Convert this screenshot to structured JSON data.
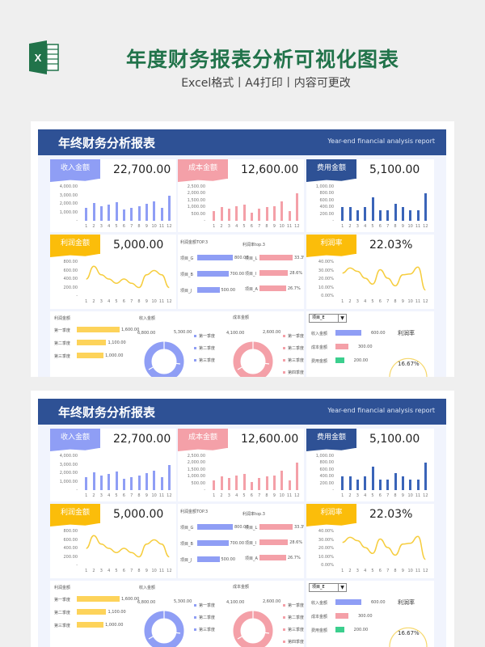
{
  "header": {
    "title": "年度财务报表分析可视化图表",
    "subtitle": "Excel格式丨A4打印丨内容可更改",
    "logo_icon": "excel-icon",
    "title_color": "#21734a"
  },
  "colors": {
    "banner": "#2e5195",
    "income": "#8f9ef5",
    "cost": "#f4a0a8",
    "expense": "#3a64b8",
    "profit": "#fbbd0a",
    "line": "#f6cd3e",
    "green": "#3ccf8e",
    "panel_bg": "#f1f4fd"
  },
  "report": {
    "title": "年终财务分析报表",
    "subtitle": "Year-end financial analysis report",
    "months": [
      "1",
      "2",
      "3",
      "4",
      "5",
      "6",
      "7",
      "8",
      "9",
      "10",
      "11",
      "12"
    ],
    "income": {
      "tag": "收入金额",
      "total": "22,700.00",
      "y_ticks": [
        "4,000.00",
        "3,000.00",
        "2,000.00",
        "1,000.00",
        "-"
      ],
      "values": [
        1500,
        2100,
        1700,
        1900,
        2200,
        1300,
        1500,
        1700,
        2000,
        2300,
        1500,
        3000
      ],
      "ymax": 4000
    },
    "cost": {
      "tag": "成本金额",
      "total": "12,600.00",
      "y_ticks": [
        "2,500.00",
        "2,000.00",
        "1,500.00",
        "1,000.00",
        "500.00",
        "-"
      ],
      "values": [
        700,
        1000,
        900,
        1100,
        1200,
        600,
        900,
        1000,
        1100,
        1400,
        700,
        2000
      ],
      "ymax": 2500
    },
    "expense": {
      "tag": "费用金额",
      "total": "5,100.00",
      "y_ticks": [
        "1,000.00",
        "800.00",
        "600.00",
        "400.00",
        "200.00",
        "-"
      ],
      "values": [
        400,
        400,
        300,
        400,
        700,
        300,
        300,
        500,
        400,
        300,
        300,
        800
      ],
      "ymax": 1000
    },
    "profit": {
      "tag": "利润金额",
      "total": "5,000.00",
      "y_ticks": [
        "800.00",
        "600.00",
        "400.00",
        "200.00",
        "-"
      ],
      "values": [
        400,
        700,
        500,
        400,
        300,
        400,
        300,
        200,
        500,
        600,
        500,
        200
      ],
      "ymax": 800
    },
    "profit_rate": {
      "tag": "利润率",
      "total": "22.03%",
      "y_ticks": [
        "40.00%",
        "30.00%",
        "20.00%",
        "10.00%",
        "0.00%"
      ],
      "values": [
        27,
        33,
        29,
        21,
        14,
        31,
        21,
        12,
        25,
        26,
        34,
        7
      ],
      "ymax": 40
    },
    "top3_profit": {
      "title": "利润金额TOP.3",
      "items": [
        {
          "label": "项目_G",
          "value": "800.00",
          "num": 800
        },
        {
          "label": "项目_B",
          "value": "700.00",
          "num": 700
        },
        {
          "label": "项目_J",
          "value": "500.00",
          "num": 500
        }
      ]
    },
    "top3_rate": {
      "title": "利润率top.3",
      "items": [
        {
          "label": "项目_L",
          "value": "33.3%",
          "num": 33.3
        },
        {
          "label": "项目_I",
          "value": "28.6%",
          "num": 28.6
        },
        {
          "label": "项目_A",
          "value": "26.7%",
          "num": 26.7
        }
      ]
    },
    "quarter_profit": {
      "title": "利润金额",
      "items": [
        {
          "label": "第一季度",
          "value": "1,600.00",
          "num": 1600
        },
        {
          "label": "第二季度",
          "value": "1,100.00",
          "num": 1100
        },
        {
          "label": "第三季度",
          "value": "1,000.00",
          "num": 1000
        }
      ]
    },
    "income_donut": {
      "title": "收入金额",
      "labels": [
        "6,800.00",
        "5,300.00"
      ],
      "legend": [
        "第一季度",
        "第二季度",
        "第三季度"
      ]
    },
    "cost_donut": {
      "title": "成本金额",
      "labels": [
        "4,100.00",
        "2,600.00"
      ],
      "legend": [
        "第一季度",
        "第二季度",
        "第三季度",
        "第四季度"
      ]
    },
    "project_detail": {
      "selected": "项目_E",
      "rows": [
        {
          "label": "收入金额",
          "value": "600.00",
          "num": 600
        },
        {
          "label": "成本金额",
          "value": "300.00",
          "num": 300
        },
        {
          "label": "费用金额",
          "value": "200.00",
          "num": 200
        }
      ],
      "gauge_title": "利润率",
      "gauge_value": "16.67%"
    }
  }
}
